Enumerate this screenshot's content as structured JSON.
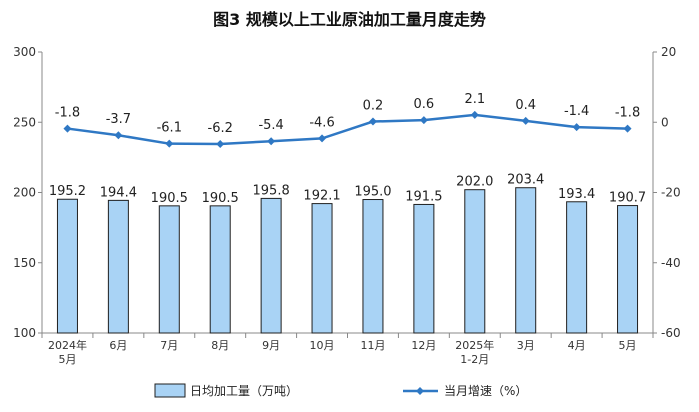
{
  "chart_data": {
    "type": "bar",
    "title": "图3  规模以上工业原油加工量月度走势",
    "categories": [
      [
        "2024年",
        "5月"
      ],
      [
        "6月"
      ],
      [
        "7月"
      ],
      [
        "8月"
      ],
      [
        "9月"
      ],
      [
        "10月"
      ],
      [
        "11月"
      ],
      [
        "12月"
      ],
      [
        "2025年",
        "1-2月"
      ],
      [
        "3月"
      ],
      [
        "4月"
      ],
      [
        "5月"
      ]
    ],
    "series": [
      {
        "name": "日均加工量（万吨）",
        "type": "bar",
        "axis": "left",
        "color": "#a9d3f5",
        "values": [
          195.2,
          194.4,
          190.5,
          190.5,
          195.8,
          192.1,
          195.0,
          191.5,
          202.0,
          203.4,
          193.4,
          190.7
        ],
        "labels": [
          "195.2",
          "194.4",
          "190.5",
          "190.5",
          "195.8",
          "192.1",
          "195.0",
          "191.5",
          "202.0",
          "203.4",
          "193.4",
          "190.7"
        ]
      },
      {
        "name": "当月增速（%）",
        "type": "line",
        "axis": "right",
        "color": "#2f78c4",
        "values": [
          -1.8,
          -3.7,
          -6.1,
          -6.2,
          -5.4,
          -4.6,
          0.2,
          0.6,
          2.1,
          0.4,
          -1.4,
          -1.8
        ],
        "labels": [
          "-1.8",
          "-3.7",
          "-6.1",
          "-6.2",
          "-5.4",
          "-4.6",
          "0.2",
          "0.6",
          "2.1",
          "0.4",
          "-1.4",
          "-1.8"
        ]
      }
    ],
    "y_left": {
      "min": 100,
      "max": 300,
      "ticks": [
        100,
        150,
        200,
        250,
        300
      ]
    },
    "y_right": {
      "min": -60,
      "max": 20,
      "ticks": [
        -60,
        -40,
        -20,
        0,
        20
      ]
    },
    "grid": false,
    "legend_position": "bottom"
  }
}
